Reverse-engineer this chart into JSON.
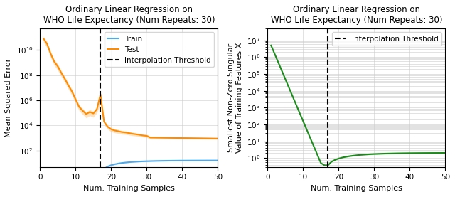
{
  "title": "Ordinary Linear Regression on\nWHO Life Expectancy (Num Repeats: 30)",
  "xlabel": "Num. Training Samples",
  "ylabel_left": "Mean Squared Error",
  "ylabel_right": "Smallest Non-Zero Singular\nValue of Training Features X",
  "interpolation_threshold": 17,
  "train_color": "#4fa8e8",
  "test_color": "#ff8c00",
  "green_color": "#1a8a1a",
  "train_fill_alpha": 0.25,
  "test_fill_alpha": 0.25,
  "green_fill_alpha": 0.25,
  "legend_left": [
    "Train",
    "Test",
    "Interpolation Threshold"
  ],
  "legend_right": [
    "Interpolation Threshold"
  ]
}
